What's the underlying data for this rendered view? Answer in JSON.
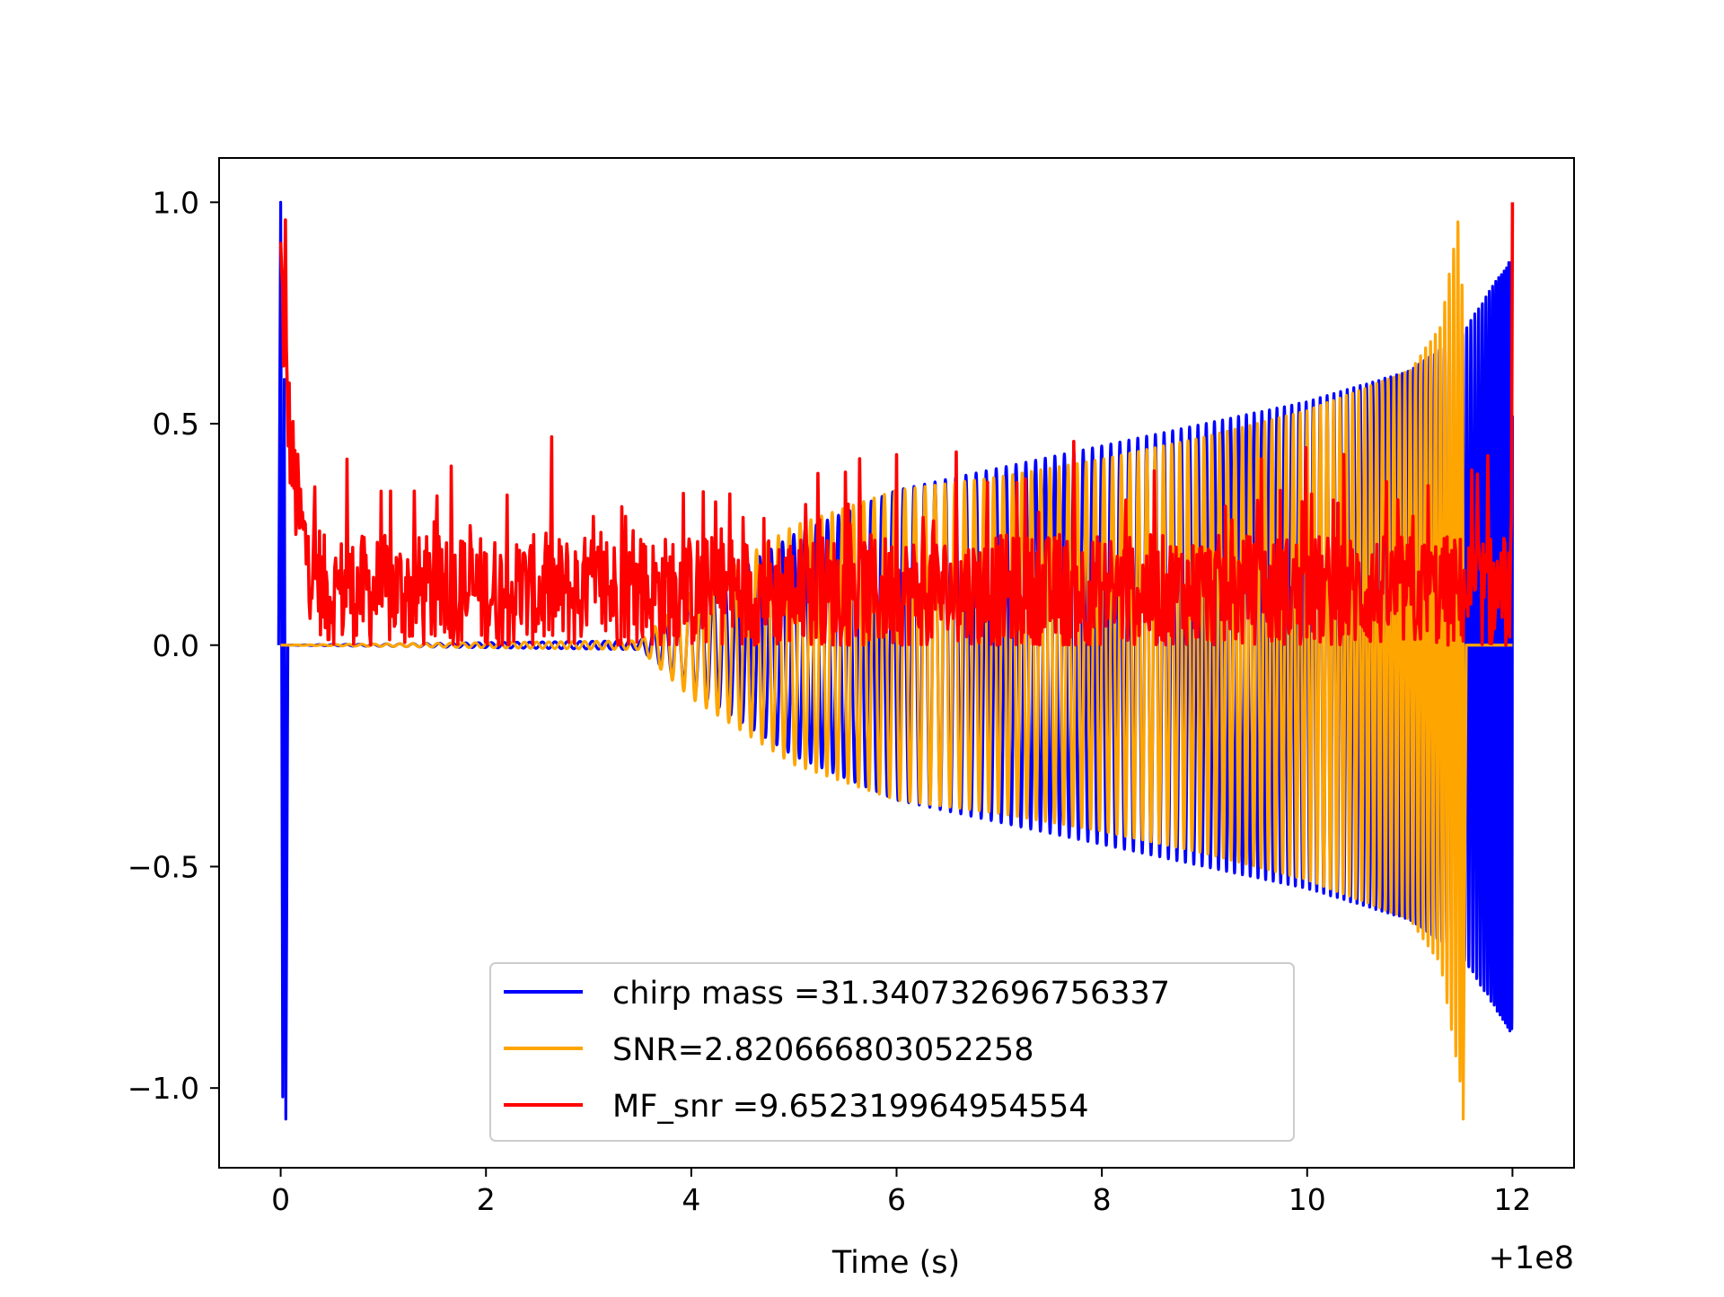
{
  "chart_data": {
    "type": "line",
    "title": "",
    "xlabel": "Time (s)",
    "ylabel": "",
    "x_offset_label": "+1e8",
    "xlim": [
      -0.6,
      12.6
    ],
    "ylim": [
      -1.18,
      1.1
    ],
    "x_ticks": [
      0,
      2,
      4,
      6,
      8,
      10,
      12
    ],
    "x_tick_labels": [
      "0",
      "2",
      "4",
      "6",
      "8",
      "10",
      "12"
    ],
    "y_ticks": [
      1.0,
      0.5,
      0.0,
      -0.5,
      -1.0
    ],
    "y_tick_labels": [
      "1.0",
      "0.5",
      "0.0",
      "−0.5",
      "−1.0"
    ],
    "grid": false,
    "legend_position": "lower-center",
    "series": [
      {
        "name": "chirp mass =31.340732696756337",
        "color": "#0000ff",
        "shape": "chirp waveform: near-zero until ~3.5 s, growing oscillation to ~0.88 amplitude ending at 12 s; spike to 1.0 / -1.07 at t=0",
        "envelope": {
          "t": [
            0,
            3.5,
            4,
            5,
            6,
            7,
            8,
            9,
            10,
            11,
            11.5,
            12
          ],
          "amplitude": [
            0,
            0.01,
            0.1,
            0.25,
            0.35,
            0.4,
            0.45,
            0.5,
            0.55,
            0.62,
            0.7,
            0.88
          ]
        },
        "peaks": [
          {
            "t": 0.02,
            "value": 1.0
          },
          {
            "t": 0.05,
            "value": -1.07
          }
        ]
      },
      {
        "name": "SNR=2.820666803052258",
        "color": "#ffa500",
        "shape": "chirp waveform: zero until ~3.5 s, growing oscillation to ~1.0 / -1.07 at ~11.5 s, then zero to 12 s",
        "envelope": {
          "t": [
            0,
            3.5,
            4,
            5,
            6,
            7,
            8,
            9,
            10,
            11,
            11.3,
            11.5,
            11.55,
            12
          ],
          "amplitude": [
            0,
            0.01,
            0.12,
            0.27,
            0.35,
            0.38,
            0.42,
            0.47,
            0.53,
            0.62,
            0.72,
            1.0,
            0,
            0
          ]
        }
      },
      {
        "name": "MF_snr =9.652319964954554",
        "color": "#ff0000",
        "shape": "noisy positive matched-filter output, ~0.12 baseline with jitter 0-0.45, peaks at t=0 (~0.96) and t=12 (~1.0)",
        "baseline": 0.12,
        "peaks": [
          {
            "t": 0.05,
            "value": 0.96
          },
          {
            "t": 0.65,
            "value": 0.42
          },
          {
            "t": 6.0,
            "value": 0.43
          },
          {
            "t": 12.0,
            "value": 1.0
          }
        ]
      }
    ]
  }
}
